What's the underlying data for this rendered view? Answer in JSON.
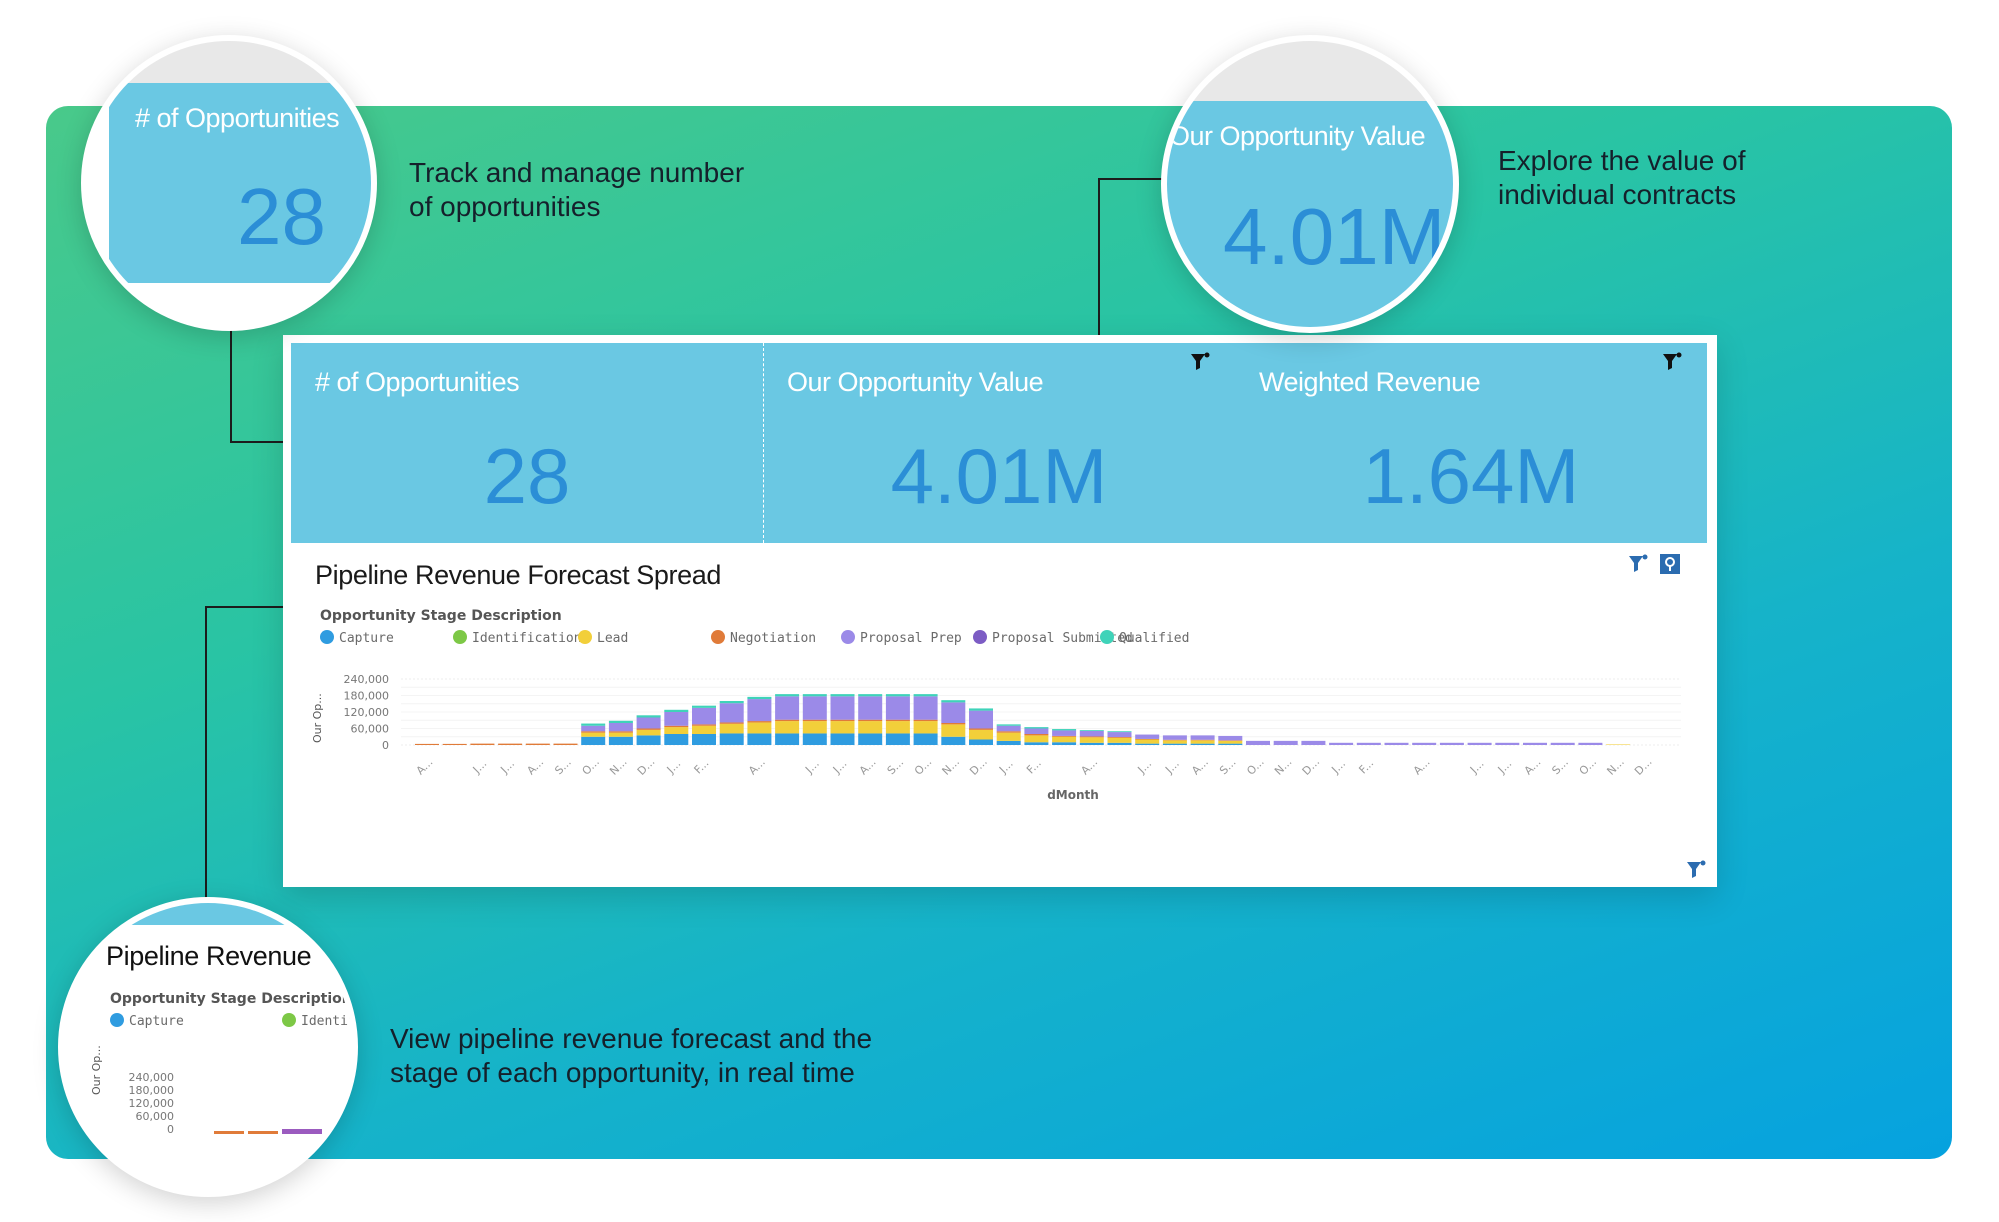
{
  "captions": {
    "opportunities": [
      "Track and manage number",
      "of opportunities"
    ],
    "value": [
      "Explore the value of",
      "individual contracts"
    ],
    "pipeline": [
      "View pipeline revenue forecast and the",
      "stage of each opportunity, in real time"
    ]
  },
  "kpis": [
    {
      "title": "# of Opportunities",
      "value": "28"
    },
    {
      "title": "Our Opportunity Value",
      "value": "4.01M"
    },
    {
      "title": "Weighted Revenue",
      "value": "1.64M"
    }
  ],
  "zoom": {
    "opportunities": {
      "title": "# of Opportunities",
      "value": "28"
    },
    "value": {
      "title": "Our Opportunity Value",
      "value": "4.01M"
    },
    "pipeline": {
      "title": "Pipeline Revenue",
      "legend_title": "Opportunity Stage Description",
      "legend": [
        "Capture",
        "Identific"
      ],
      "yticks": [
        "240,000",
        "180,000",
        "120,000",
        "60,000",
        "0"
      ],
      "ylabel": "Our Op..."
    }
  },
  "colors": {
    "kpi_bg": "#6ac8e3",
    "kpi_value": "#2b8ed6",
    "accent_icon": "#2b6cb0"
  },
  "icons": [
    "filter-icon",
    "pin-icon"
  ],
  "chart_data": {
    "type": "bar",
    "stacked": true,
    "title": "Pipeline Revenue Forecast Spread",
    "legend_title": "Opportunity Stage Description",
    "xlabel": "dMonth",
    "ylabel": "Our Op...",
    "ylim": [
      0,
      240000
    ],
    "yticks": [
      "240,000",
      "180,000",
      "120,000",
      "60,000",
      "0"
    ],
    "grid": true,
    "legend_position": "top",
    "categories": [
      "A...",
      "",
      "J...",
      "J...",
      "A...",
      "S...",
      "O...",
      "N...",
      "D...",
      "J...",
      "F...",
      "",
      "A...",
      "",
      "J...",
      "J...",
      "A...",
      "S...",
      "O...",
      "N...",
      "D...",
      "J...",
      "F...",
      "",
      "A...",
      "",
      "J...",
      "J...",
      "A...",
      "S...",
      "O...",
      "N...",
      "D...",
      "J...",
      "F...",
      "",
      "A...",
      "",
      "J...",
      "J...",
      "A...",
      "S...",
      "O...",
      "N...",
      "D..."
    ],
    "series": [
      {
        "name": "Capture",
        "color": "#2f9ce0",
        "values": [
          0,
          0,
          0,
          0,
          0,
          0,
          30000,
          30000,
          35000,
          40000,
          40000,
          42000,
          42000,
          42000,
          42000,
          42000,
          42000,
          42000,
          42000,
          30000,
          20000,
          15000,
          10000,
          10000,
          8000,
          8000,
          5000,
          5000,
          5000,
          5000,
          0,
          0,
          0,
          0,
          0,
          0,
          0,
          0,
          0,
          0,
          0,
          0,
          0,
          0,
          0
        ]
      },
      {
        "name": "Identification",
        "color": "#7dc846",
        "values": [
          0,
          0,
          0,
          0,
          0,
          0,
          0,
          0,
          0,
          0,
          0,
          0,
          0,
          0,
          0,
          0,
          0,
          0,
          0,
          0,
          0,
          0,
          0,
          0,
          0,
          0,
          0,
          0,
          0,
          0,
          0,
          0,
          0,
          0,
          0,
          0,
          0,
          0,
          0,
          0,
          0,
          0,
          0,
          0,
          0
        ]
      },
      {
        "name": "Lead",
        "color": "#f2cf3a",
        "values": [
          0,
          0,
          0,
          0,
          0,
          0,
          15000,
          15000,
          20000,
          25000,
          30000,
          35000,
          40000,
          45000,
          45000,
          45000,
          45000,
          45000,
          45000,
          45000,
          35000,
          30000,
          25000,
          20000,
          20000,
          18000,
          15000,
          12000,
          12000,
          10000,
          0,
          0,
          0,
          0,
          0,
          0,
          0,
          0,
          0,
          0,
          0,
          0,
          0,
          2000,
          0
        ]
      },
      {
        "name": "Negotiation",
        "color": "#e07b39",
        "values": [
          4000,
          4000,
          5000,
          5000,
          5000,
          5000,
          5000,
          5000,
          5000,
          5000,
          5000,
          5000,
          5000,
          5000,
          5000,
          5000,
          5000,
          5000,
          5000,
          5000,
          5000,
          5000,
          5000,
          3000,
          3000,
          3000,
          2000,
          2000,
          2000,
          2000,
          0,
          0,
          0,
          0,
          0,
          0,
          0,
          0,
          0,
          0,
          0,
          0,
          0,
          0,
          0
        ]
      },
      {
        "name": "Proposal Prep",
        "color": "#9b8ae8",
        "values": [
          0,
          0,
          0,
          0,
          0,
          0,
          20000,
          30000,
          40000,
          50000,
          60000,
          70000,
          80000,
          85000,
          85000,
          85000,
          85000,
          85000,
          85000,
          75000,
          65000,
          20000,
          20000,
          20000,
          20000,
          18000,
          16000,
          16000,
          16000,
          16000,
          15000,
          15000,
          15000,
          8000,
          8000,
          8000,
          8000,
          8000,
          8000,
          8000,
          8000,
          8000,
          8000,
          0,
          0
        ]
      },
      {
        "name": "Proposal Submitted",
        "color": "#7c5cc4",
        "values": [
          0,
          0,
          0,
          0,
          0,
          0,
          0,
          0,
          0,
          0,
          0,
          0,
          0,
          0,
          0,
          0,
          0,
          0,
          0,
          0,
          0,
          0,
          0,
          0,
          0,
          0,
          0,
          0,
          0,
          0,
          0,
          0,
          0,
          0,
          0,
          0,
          0,
          0,
          0,
          0,
          0,
          0,
          0,
          0,
          0
        ]
      },
      {
        "name": "Qualified",
        "color": "#3fd3b9",
        "values": [
          0,
          0,
          0,
          0,
          0,
          0,
          8000,
          8000,
          8000,
          8000,
          8000,
          8000,
          8000,
          8000,
          8000,
          8000,
          8000,
          8000,
          8000,
          8000,
          8000,
          5000,
          5000,
          5000,
          3000,
          3000,
          0,
          0,
          0,
          0,
          0,
          0,
          0,
          0,
          0,
          0,
          0,
          0,
          0,
          0,
          0,
          0,
          0,
          0,
          0
        ]
      }
    ]
  }
}
